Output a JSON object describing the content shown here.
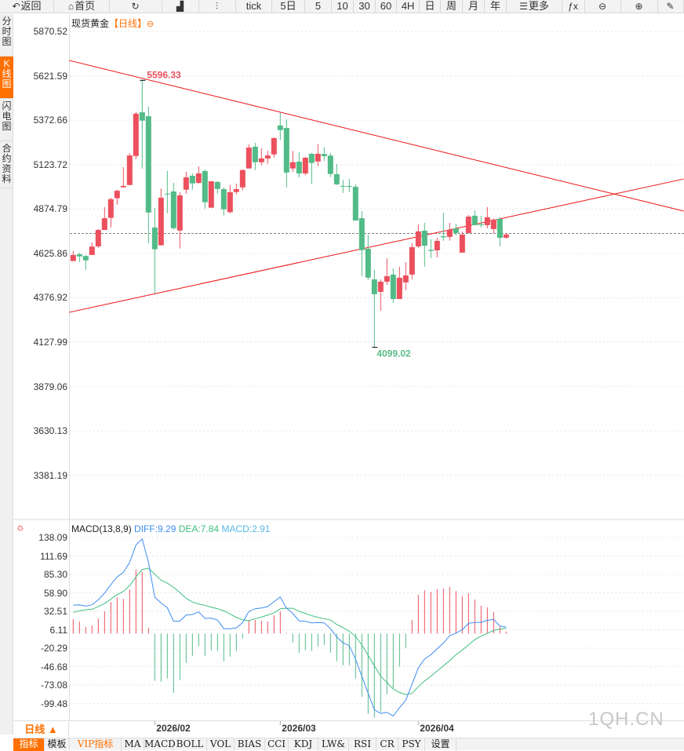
{
  "toolbar": {
    "items": [
      {
        "label": "返回",
        "icon": "back-arrow-icon"
      },
      {
        "label": "首页",
        "icon": "home-icon"
      },
      {
        "label": "",
        "icon": "refresh-icon"
      },
      {
        "label": "",
        "icon": "bar-chart-icon"
      },
      {
        "label": "",
        "icon": "candlestick-icon"
      },
      {
        "label": "tick"
      },
      {
        "label": "5日"
      },
      {
        "label": "5"
      },
      {
        "label": "10"
      },
      {
        "label": "30"
      },
      {
        "label": "60"
      },
      {
        "label": "4H"
      },
      {
        "label": "日"
      },
      {
        "label": "周"
      },
      {
        "label": "月"
      },
      {
        "label": "年"
      },
      {
        "label": "更多",
        "icon": "menu-icon"
      },
      {
        "label": "",
        "icon": "function-icon"
      },
      {
        "label": "",
        "icon": "zoom-out-icon"
      },
      {
        "label": "",
        "icon": "zoom-in-icon"
      },
      {
        "label": "",
        "icon": "pen-icon"
      }
    ]
  },
  "sidebar": {
    "tabs": [
      "分时图",
      "K线图",
      "闪电图",
      "合约资料"
    ],
    "active": 1
  },
  "chart_title": {
    "name": "现货黄金",
    "period": "【日线】",
    "icon": "settings-circle-icon"
  },
  "colors": {
    "up": "#ec4f5d",
    "down": "#52bb87",
    "trend": "#ee1111",
    "diff": "#3d8df0",
    "dea": "#3fbf7f",
    "macd": "#56b8e6",
    "accent": "#ff7000",
    "current": "#2a7de1"
  },
  "chart_data": [
    {
      "type": "candlestick",
      "title": "现货黄金",
      "ylim": [
        3300,
        5900
      ],
      "yticks": [
        "5870.52",
        "5621.59",
        "5372.66",
        "5123.72",
        "4874.79",
        "4625.86",
        "4376.92",
        "4127.99",
        "3879.06",
        "3630.13",
        "3381.19"
      ],
      "high_label": {
        "index": 11,
        "value": "5596.33"
      },
      "low_label": {
        "index": 48,
        "value": "4099.02"
      },
      "current_price": 4738,
      "trendlines": [
        {
          "from": [
            -0.66,
            5708
          ],
          "to": [
            97.3,
            4863
          ]
        },
        {
          "from": [
            -0.66,
            4295
          ],
          "to": [
            97.3,
            5043
          ]
        }
      ],
      "x_labels": [
        {
          "index": 13,
          "label": "2026/02"
        },
        {
          "index": 33,
          "label": "2026/03"
        },
        {
          "index": 55,
          "label": "2026/04"
        }
      ],
      "ohlc": [
        [
          4583,
          4639,
          4583,
          4617
        ],
        [
          4621,
          4630,
          4578,
          4609
        ],
        [
          4611,
          4617,
          4534,
          4587
        ],
        [
          4617,
          4687,
          4617,
          4664
        ],
        [
          4665,
          4763,
          4657,
          4757
        ],
        [
          4757,
          4885,
          4757,
          4823
        ],
        [
          4825,
          4938,
          4771,
          4930
        ],
        [
          4935,
          4983,
          4899,
          4977
        ],
        [
          4996,
          5109,
          4996,
          5004
        ],
        [
          5009,
          5187,
          5009,
          5175
        ],
        [
          5172,
          5419,
          5155,
          5409
        ],
        [
          5417,
          5596.33,
          5101,
          5370
        ],
        [
          5395,
          5448,
          4683,
          4855
        ],
        [
          4771,
          4881,
          4400,
          4649
        ],
        [
          4671,
          4989,
          4671,
          4938
        ],
        [
          4961,
          5089,
          4851,
          4958
        ],
        [
          4973,
          5021,
          4760,
          4767
        ],
        [
          4754,
          4969,
          4653,
          4951
        ],
        [
          4983,
          5083,
          4961,
          5052
        ],
        [
          5061,
          5074,
          4983,
          5018
        ],
        [
          5021,
          5114,
          5017,
          5074
        ],
        [
          5087,
          5096,
          4877,
          4913
        ],
        [
          4882,
          5030,
          4882,
          5030
        ],
        [
          5026,
          5031,
          4961,
          4987
        ],
        [
          4986,
          4995,
          4838,
          4873
        ],
        [
          4857,
          5008,
          4851,
          4969
        ],
        [
          4970,
          5017,
          4957,
          4986
        ],
        [
          4996,
          5097,
          4979,
          5093
        ],
        [
          5102,
          5237,
          5102,
          5219
        ],
        [
          5224,
          5246,
          5093,
          5137
        ],
        [
          5137,
          5215,
          5119,
          5158
        ],
        [
          5158,
          5202,
          5128,
          5175
        ],
        [
          5181,
          5277,
          5163,
          5272
        ],
        [
          5343,
          5416,
          5260,
          5317
        ],
        [
          5329,
          5376,
          4996,
          5079
        ],
        [
          5102,
          5200,
          5083,
          5137
        ],
        [
          5140,
          5193,
          5051,
          5074
        ],
        [
          5074,
          5168,
          5064,
          5162
        ],
        [
          5184,
          5189,
          5014,
          5133
        ],
        [
          5141,
          5238,
          5115,
          5184
        ],
        [
          5183,
          5221,
          5145,
          5171
        ],
        [
          5174,
          5189,
          5053,
          5071
        ],
        [
          5070,
          5127,
          5009,
          5013
        ],
        [
          5004,
          5038,
          4965,
          5001
        ],
        [
          5004,
          5043,
          4970,
          5001
        ],
        [
          4999,
          5013,
          4810,
          4810
        ],
        [
          4823,
          4863,
          4498,
          4644
        ],
        [
          4652,
          4731,
          4476,
          4490
        ],
        [
          4480,
          4533,
          4099.02,
          4397
        ],
        [
          4410,
          4480,
          4304,
          4467
        ],
        [
          4467,
          4599,
          4449,
          4498
        ],
        [
          4507,
          4542,
          4348,
          4370
        ],
        [
          4370,
          4551,
          4370,
          4489
        ],
        [
          4463,
          4577,
          4419,
          4502
        ],
        [
          4507,
          4683,
          4480,
          4661
        ],
        [
          4665,
          4788,
          4656,
          4749
        ],
        [
          4753,
          4797,
          4551,
          4669
        ],
        [
          4646,
          4705,
          4599,
          4640
        ],
        [
          4643,
          4713,
          4603,
          4696
        ],
        [
          4722,
          4854,
          4696,
          4716
        ],
        [
          4718,
          4797,
          4697,
          4757
        ],
        [
          4766,
          4793,
          4727,
          4740
        ],
        [
          4630,
          4749,
          4630,
          4731
        ],
        [
          4740,
          4841,
          4740,
          4832
        ],
        [
          4837,
          4867,
          4784,
          4784
        ],
        [
          4789,
          4837,
          4771,
          4784
        ],
        [
          4784,
          4885,
          4766,
          4828
        ],
        [
          4762,
          4823,
          4735,
          4815
        ],
        [
          4819,
          4828,
          4665,
          4713
        ],
        [
          4714,
          4740,
          4709,
          4731
        ]
      ]
    },
    {
      "type": "macd",
      "title": "MACD(13,8,9)",
      "diff_label": "DIFF:9.29",
      "dea_label": "DEA:7.84",
      "macd_label": "MACD:2.91",
      "yticks": [
        "138.09",
        "111.69",
        "85.30",
        "58.90",
        "32.51",
        "6.11",
        "-20.29",
        "-46.68",
        "-73.08",
        "-99.48"
      ],
      "diff": [
        40.8,
        41.2,
        39.3,
        41.2,
        48.3,
        58.0,
        70.0,
        81.2,
        87.6,
        101.8,
        126.9,
        135.5,
        101.8,
        52.0,
        43.8,
        37.1,
        17.6,
        18.0,
        26.6,
        27.3,
        31.1,
        21.7,
        22.1,
        19.5,
        7.1,
        7.1,
        8.2,
        15.7,
        31.8,
        35.6,
        36.7,
        38.6,
        45.7,
        52.4,
        36.3,
        28.8,
        18.3,
        17.6,
        15.4,
        15.7,
        15.4,
        7.1,
        -4.9,
        -13.1,
        -17.2,
        -36.7,
        -61.0,
        -85.4,
        -109.0,
        -114.2,
        -112.7,
        -117.9,
        -106.0,
        -95.5,
        -72.3,
        -49.0,
        -36.3,
        -30.3,
        -21.7,
        -13.5,
        -3.0,
        0.7,
        5.6,
        14.6,
        16.1,
        16.1,
        19.1,
        20.2,
        10.9,
        9.29
      ],
      "dea": [
        30.3,
        32.6,
        34.1,
        34.8,
        38.6,
        43.1,
        49.4,
        55.8,
        60.3,
        68.5,
        81.2,
        91.7,
        93.6,
        85.0,
        76.4,
        72.3,
        66.3,
        58.8,
        50.5,
        45.3,
        42.3,
        40.4,
        37.8,
        35.6,
        32.6,
        28.1,
        23.2,
        19.8,
        18.3,
        21.3,
        23.6,
        26.6,
        29.6,
        35.6,
        36.3,
        36.3,
        31.8,
        28.8,
        25.8,
        23.2,
        21.3,
        19.5,
        13.1,
        8.6,
        3.4,
        -4.1,
        -16.1,
        -31.1,
        -46.1,
        -61.0,
        -70.0,
        -79.4,
        -84.2,
        -87.2,
        -85.4,
        -76.0,
        -67.8,
        -61.0,
        -53.5,
        -46.1,
        -38.6,
        -30.3,
        -23.6,
        -16.1,
        -8.6,
        -3.7,
        0.4,
        4.5,
        6.4,
        7.84
      ],
      "macd": [
        20.6,
        17.2,
        9.4,
        11.6,
        21.7,
        31.8,
        45.3,
        52.0,
        49.8,
        63.3,
        91.4,
        88.4,
        8.2,
        -67.8,
        -68.9,
        -64.4,
        -84.6,
        -66.6,
        -41.9,
        -31.8,
        -18.3,
        -31.8,
        -24.0,
        -25.1,
        -39.7,
        -32.9,
        -25.1,
        -7.1,
        19.5,
        19.5,
        18.3,
        17.2,
        26.2,
        31.8,
        1.0,
        -12.7,
        -27.3,
        -24.0,
        -25.1,
        -18.3,
        -16.1,
        -27.3,
        -39.7,
        -45.3,
        -45.3,
        -64.4,
        -90.2,
        -114.9,
        -120.2,
        -112.3,
        -86.9,
        -77.9,
        -47.5,
        -20.6,
        19.5,
        55.4,
        62.2,
        59.9,
        63.3,
        64.4,
        66.6,
        61.0,
        53.2,
        57.7,
        48.7,
        39.7,
        37.4,
        30.7,
        11.2,
        2.91
      ]
    }
  ],
  "bottom": {
    "period_label": "日线 ▲",
    "tabs": [
      "指标",
      "模板",
      "VIP指标",
      "MA",
      "MACD",
      "BOLL",
      "VOL",
      "BIAS",
      "CCI",
      "KDJ",
      "LW&",
      "RSI",
      "CR",
      "PSY",
      "设置"
    ]
  },
  "watermark": "1QH.CN"
}
